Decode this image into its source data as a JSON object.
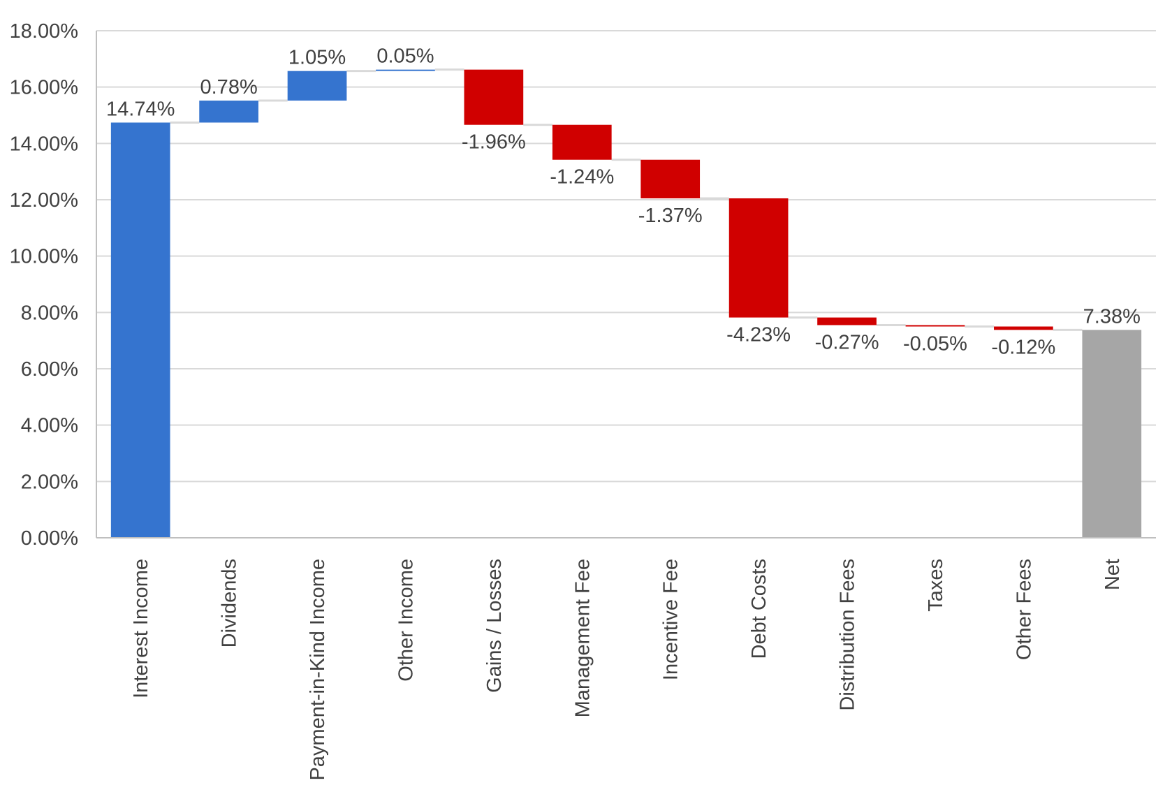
{
  "chart_data": {
    "type": "bar",
    "subtype": "waterfall",
    "title": "",
    "xlabel": "",
    "ylabel": "",
    "ylim": [
      0,
      18
    ],
    "yticks": [
      0,
      2,
      4,
      6,
      8,
      10,
      12,
      14,
      16,
      18
    ],
    "ytick_labels": [
      "0.00%",
      "2.00%",
      "4.00%",
      "6.00%",
      "8.00%",
      "10.00%",
      "12.00%",
      "14.00%",
      "16.00%",
      "18.00%"
    ],
    "grid": true,
    "legend": "none",
    "categories": [
      "Interest Income",
      "Dividends",
      "Payment-in-Kind Income",
      "Other Income",
      "Gains / Losses",
      "Management Fee",
      "Incentive Fee",
      "Debt Costs",
      "Distribution Fees",
      "Taxes",
      "Other Fees",
      "Net"
    ],
    "values": [
      14.74,
      0.78,
      1.05,
      0.05,
      -1.96,
      -1.24,
      -1.37,
      -4.23,
      -0.27,
      -0.05,
      -0.12,
      7.38
    ],
    "value_labels": [
      "14.74%",
      "0.78%",
      "1.05%",
      "0.05%",
      "-1.96%",
      "-1.24%",
      "-1.37%",
      "-4.23%",
      "-0.27%",
      "-0.05%",
      "-0.12%",
      "7.38%"
    ],
    "bar_kinds": [
      "increase",
      "increase",
      "increase",
      "increase",
      "decrease",
      "decrease",
      "decrease",
      "decrease",
      "decrease",
      "decrease",
      "decrease",
      "total"
    ],
    "colors": {
      "increase": "#3574cf",
      "decrease": "#d00000",
      "total": "#a6a6a6",
      "grid": "#d9d9d9",
      "connector": "#d9d9d9",
      "axis": "#bfbfbf"
    }
  }
}
